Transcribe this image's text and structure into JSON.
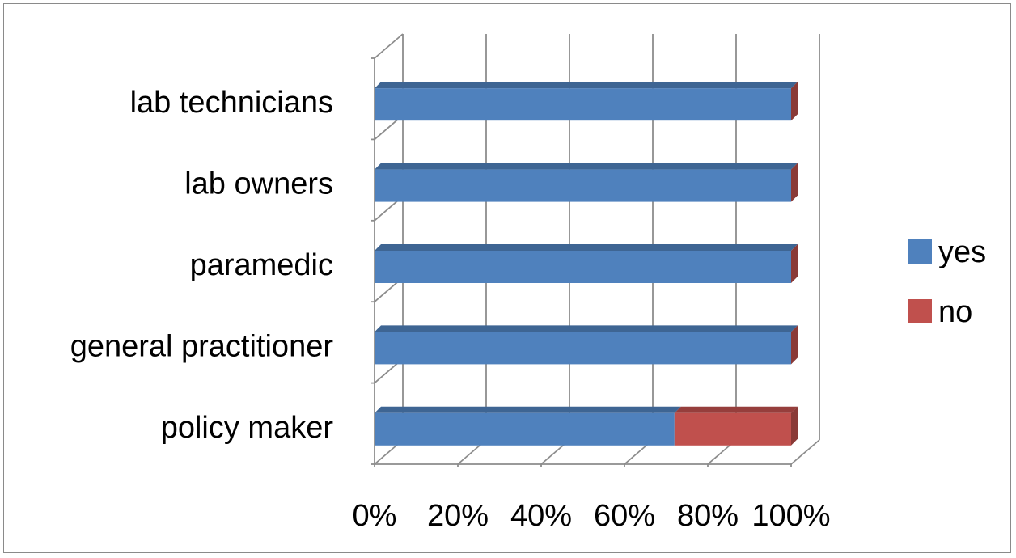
{
  "chart_data": {
    "type": "bar",
    "orientation": "horizontal",
    "stacked": true,
    "percent": true,
    "three_d": true,
    "categories": [
      "policy maker",
      "general practitioner",
      "paramedic ",
      "lab owners",
      "lab technicians"
    ],
    "series": [
      {
        "name": "yes",
        "values": [
          72,
          100,
          100,
          100,
          100
        ],
        "color": "#4F81BD"
      },
      {
        "name": "no",
        "values": [
          28,
          0,
          0,
          0,
          0
        ],
        "color": "#C0504D"
      }
    ],
    "x_ticks": [
      "0%",
      "20%",
      "40%",
      "60%",
      "80%",
      "100%"
    ],
    "xlim": [
      0,
      100
    ],
    "grid": true,
    "legend": "right",
    "title": "",
    "xlabel": "",
    "ylabel": ""
  }
}
